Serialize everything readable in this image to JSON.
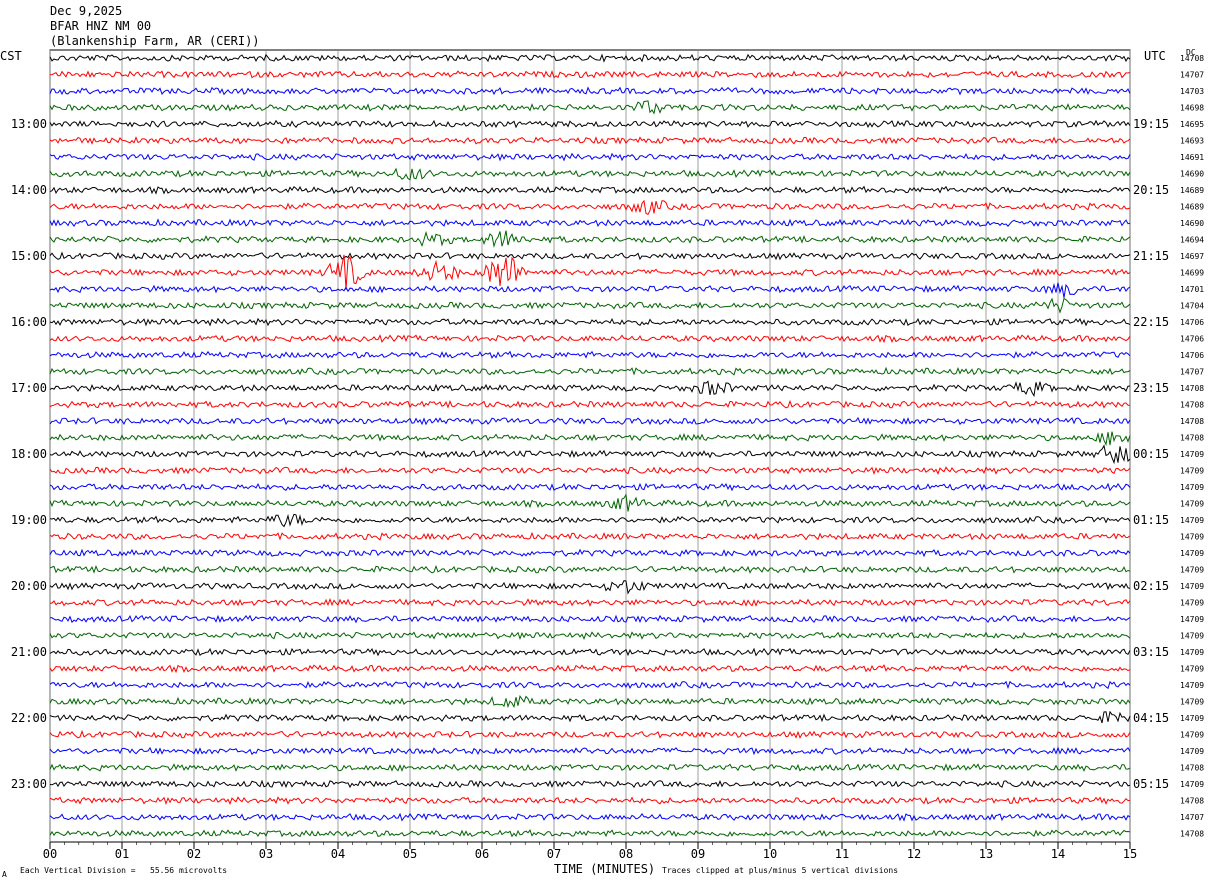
{
  "header": {
    "date": "Dec 9,2025",
    "station": "BFAR HNZ NM 00",
    "site": "(Blankenship Farm, AR (CERI))"
  },
  "timezones": {
    "left": "CST",
    "right": "UTC",
    "dc": "DC"
  },
  "footer": {
    "scale": "Each Vertical Division =   55.56 microvolts",
    "clip": "Traces clipped at plus/minus 5 vertical divisions",
    "corner": "A"
  },
  "chart_data": {
    "type": "line",
    "xlabel": "TIME (MINUTES)",
    "x_ticks": [
      "00",
      "01",
      "02",
      "03",
      "04",
      "05",
      "06",
      "07",
      "08",
      "09",
      "10",
      "11",
      "12",
      "13",
      "14",
      "15"
    ],
    "xlim": [
      0,
      15
    ],
    "grid": true,
    "trace_colors": [
      "#000000",
      "#ff0000",
      "#0000ff",
      "#006400"
    ],
    "left_time_labels": [
      "13:00",
      "14:00",
      "15:00",
      "16:00",
      "17:00",
      "18:00",
      "19:00",
      "20:00",
      "21:00",
      "22:00",
      "23:00"
    ],
    "right_time_labels": [
      "19:15",
      "20:15",
      "21:15",
      "22:15",
      "23:15",
      "00:15",
      "01:15",
      "02:15",
      "03:15",
      "04:15",
      "05:15"
    ],
    "dc_offsets": [
      14708,
      14707,
      14703,
      14698,
      14695,
      14693,
      14691,
      14690,
      14689,
      14689,
      14690,
      14694,
      14697,
      14699,
      14701,
      14704,
      14706,
      14706,
      14706,
      14707,
      14708,
      14708,
      14708,
      14708,
      14709,
      14709,
      14709,
      14709,
      14709,
      14709,
      14709,
      14709,
      14709,
      14709,
      14709,
      14709,
      14709,
      14709,
      14709,
      14709,
      14709,
      14709,
      14709,
      14708,
      14709,
      14708,
      14707,
      14708
    ],
    "events": [
      {
        "trace": 3,
        "minute": 8.3,
        "amp": 1.4
      },
      {
        "trace": 7,
        "minute": 5.0,
        "amp": 1.3
      },
      {
        "trace": 9,
        "minute": 8.3,
        "amp": 1.6
      },
      {
        "trace": 11,
        "minute": 6.3,
        "amp": 2.0
      },
      {
        "trace": 11,
        "minute": 5.3,
        "amp": 1.3
      },
      {
        "trace": 13,
        "minute": 4.1,
        "amp": 4.0
      },
      {
        "trace": 13,
        "minute": 5.4,
        "amp": 2.4
      },
      {
        "trace": 13,
        "minute": 6.3,
        "amp": 5.0
      },
      {
        "trace": 14,
        "minute": 14.1,
        "amp": 1.5
      },
      {
        "trace": 15,
        "minute": 14.0,
        "amp": 1.4
      },
      {
        "trace": 20,
        "minute": 9.2,
        "amp": 1.5
      },
      {
        "trace": 20,
        "minute": 13.6,
        "amp": 1.5
      },
      {
        "trace": 23,
        "minute": 14.8,
        "amp": 1.6
      },
      {
        "trace": 24,
        "minute": 14.8,
        "amp": 2.4
      },
      {
        "trace": 27,
        "minute": 8.0,
        "amp": 1.5
      },
      {
        "trace": 28,
        "minute": 3.3,
        "amp": 1.3
      },
      {
        "trace": 32,
        "minute": 8.0,
        "amp": 1.5
      },
      {
        "trace": 39,
        "minute": 6.4,
        "amp": 1.3
      },
      {
        "trace": 40,
        "minute": 14.8,
        "amp": 1.4
      }
    ]
  }
}
